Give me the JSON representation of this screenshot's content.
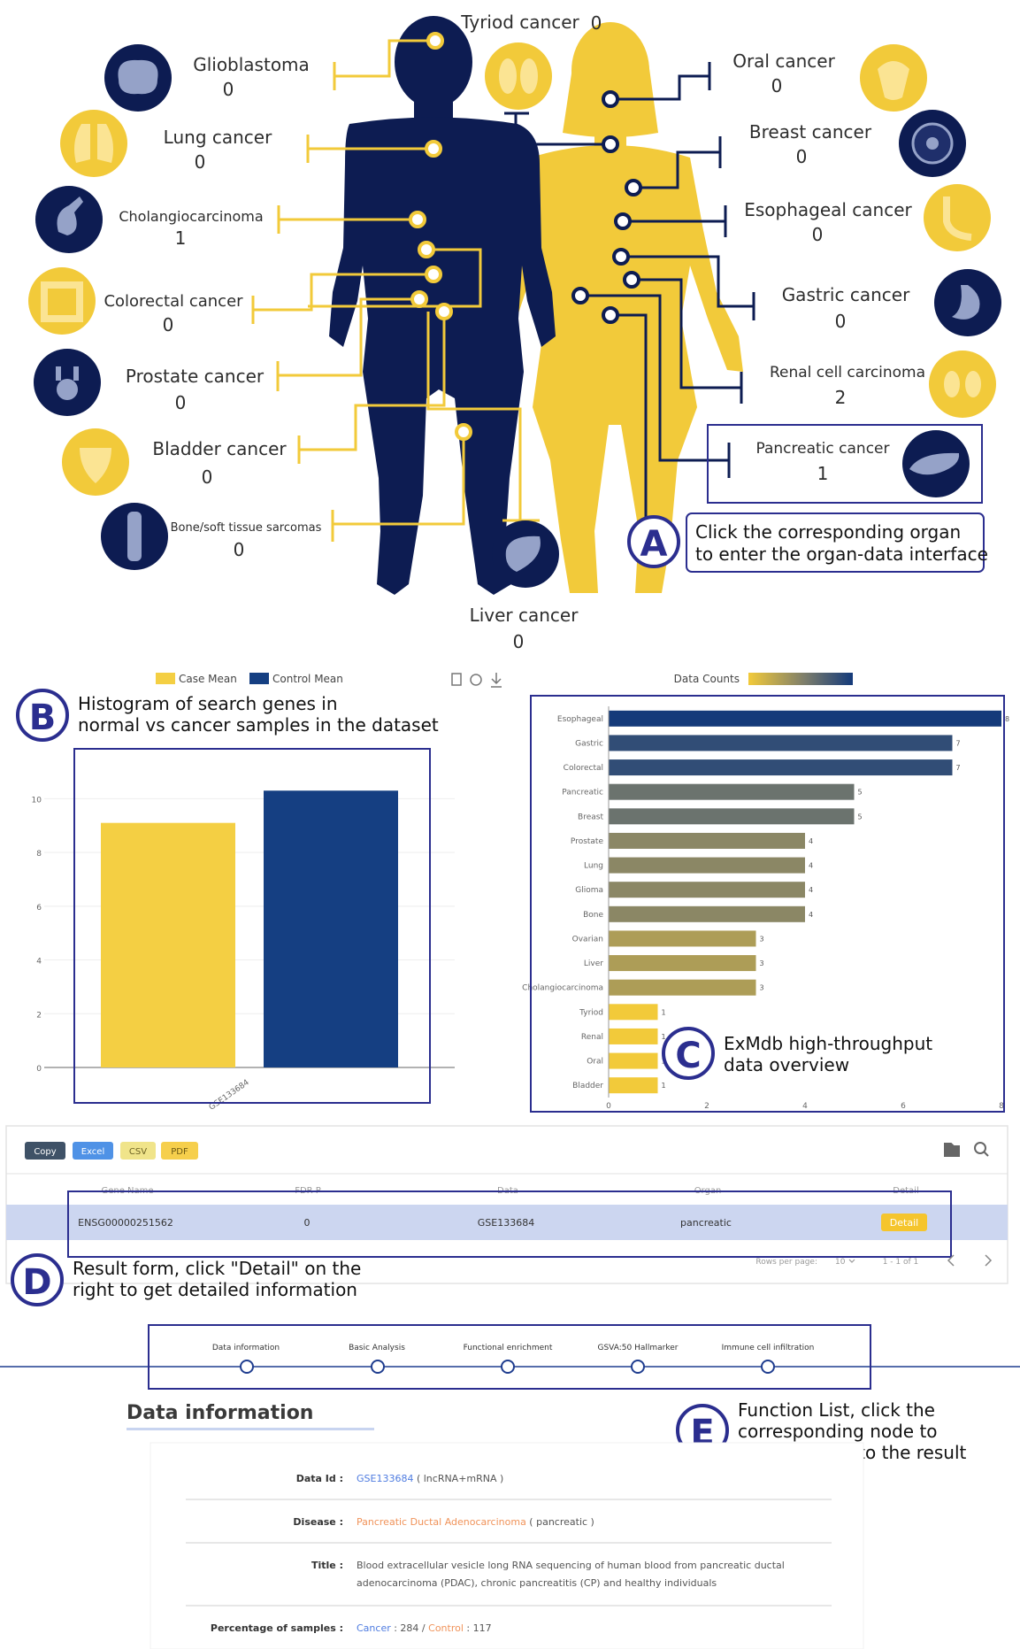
{
  "colors": {
    "navy": "#0d1c52",
    "yellow": "#f2ca3a",
    "case": "#f4cf43",
    "control": "#153f82",
    "frame": "#2b2e8f",
    "badge": "#2b2e8f"
  },
  "panel_a": {
    "badge": "A",
    "callout": [
      "Click the corresponding organ",
      "to enter the organ-data interface"
    ],
    "organs": [
      {
        "name": "Tyriod cancer",
        "count": "0",
        "icon": "thyroid-icon"
      },
      {
        "name": "Glioblastoma",
        "count": "0",
        "icon": "brain-icon"
      },
      {
        "name": "Lung cancer",
        "count": "0",
        "icon": "lungs-icon"
      },
      {
        "name": "Cholangiocarcinoma",
        "count": "1",
        "icon": "gallbladder-icon"
      },
      {
        "name": "Colorectal cancer",
        "count": "0",
        "icon": "intestine-icon"
      },
      {
        "name": "Prostate cancer",
        "count": "0",
        "icon": "prostate-icon"
      },
      {
        "name": "Bladder cancer",
        "count": "0",
        "icon": "bladder-icon"
      },
      {
        "name": "Bone/soft tissue sarcomas",
        "count": "0",
        "icon": "bone-joint-icon"
      },
      {
        "name": "Liver cancer",
        "count": "0",
        "icon": "liver-icon"
      },
      {
        "name": "Oral cancer",
        "count": "0",
        "icon": "mouth-icon"
      },
      {
        "name": "Breast cancer",
        "count": "0",
        "icon": "breast-icon"
      },
      {
        "name": "Esophageal cancer",
        "count": "0",
        "icon": "esophagus-icon"
      },
      {
        "name": "Gastric cancer",
        "count": "0",
        "icon": "stomach-icon"
      },
      {
        "name": "Renal cell carcinoma",
        "count": "2",
        "icon": "kidney-icon"
      },
      {
        "name": "Pancreatic cancer",
        "count": "1",
        "icon": "pancreas-icon"
      }
    ]
  },
  "panel_b": {
    "badge": "B",
    "caption": [
      "Histogram of search genes in",
      "normal vs cancer samples in the dataset"
    ],
    "legend": [
      "Case Mean",
      "Control Mean"
    ],
    "toolbar_icons": [
      "data-view-icon",
      "refresh-icon",
      "download-icon"
    ]
  },
  "panel_c": {
    "badge": "C",
    "caption": [
      "ExMdb high-throughput",
      "data overview"
    ],
    "legend_label": "Data Counts"
  },
  "chart_data": [
    {
      "type": "bar",
      "categories": [
        "GSE133684"
      ],
      "series": [
        {
          "name": "Case Mean",
          "values": [
            9.1
          ]
        },
        {
          "name": "Control Mean",
          "values": [
            10.3
          ]
        }
      ],
      "yticks": [
        "0",
        "2",
        "4",
        "6",
        "8",
        "10"
      ],
      "ylim": [
        0,
        11
      ],
      "legend": "top"
    },
    {
      "type": "bar",
      "orientation": "horizontal",
      "categories": [
        "Esophageal",
        "Gastric",
        "Colorectal",
        "Pancreatic",
        "Breast",
        "Prostate",
        "Lung",
        "Glioma",
        "Bone",
        "Ovarian",
        "Liver",
        "Cholangiocarcinoma",
        "Tyriod",
        "Renal",
        "Oral",
        "Bladder"
      ],
      "values": [
        8,
        7,
        7,
        5,
        5,
        4,
        4,
        4,
        4,
        3,
        3,
        3,
        1,
        1,
        1,
        1
      ],
      "xticks": [
        "0",
        "2",
        "4",
        "6",
        "8"
      ],
      "xlim": [
        0,
        8
      ],
      "legend": "Data Counts"
    }
  ],
  "panel_d": {
    "badge": "D",
    "caption": [
      "Result form, click \"Detail\" on the",
      "right to get detailed information"
    ],
    "buttons": [
      "Copy",
      "Excel",
      "CSV",
      "PDF"
    ],
    "icons": [
      "folder-icon",
      "search-icon"
    ],
    "columns": [
      "Gene Name",
      "FDR P",
      "Data",
      "Organ",
      "Detail"
    ],
    "rows": [
      [
        "ENSG00000251562",
        "0",
        "GSE133684",
        "pancreatic",
        "Detail"
      ]
    ],
    "rows_per_page_label": "Rows per page:",
    "rows_per_page": "10",
    "page_range": "1 - 1 of 1",
    "pager_icons": [
      "chevron-left-icon",
      "chevron-right-icon"
    ]
  },
  "panel_e": {
    "badge": "E",
    "caption": [
      "Function List, click the",
      "corresponding node to",
      "quickly scroll to the result"
    ],
    "steps": [
      "Data information",
      "Basic Analysis",
      "Functional enrichment",
      "GSVA:50 Hallmarker",
      "Immune cell infiltration"
    ]
  },
  "info": {
    "heading": "Data information",
    "data_id_label": "Data Id :",
    "data_id_value": "GSE133684",
    "data_id_note": " ( lncRNA+mRNA )",
    "disease_label": "Disease :",
    "disease_value": "Pancreatic Ductal Adenocarcinoma",
    "disease_note": " ( pancreatic )",
    "title_label": "Title :",
    "title_lines": [
      "Blood extracellular vesicle long RNA sequencing of human blood from pancreatic ductal",
      "adenocarcinoma (PDAC), chronic pancreatitis (CP) and healthy individuals"
    ],
    "pct_label": "Percentage of samples :",
    "cancer_label": "Cancer",
    "cancer_value": " : 284 / ",
    "control_label": "Control",
    "control_value": " : 117"
  }
}
